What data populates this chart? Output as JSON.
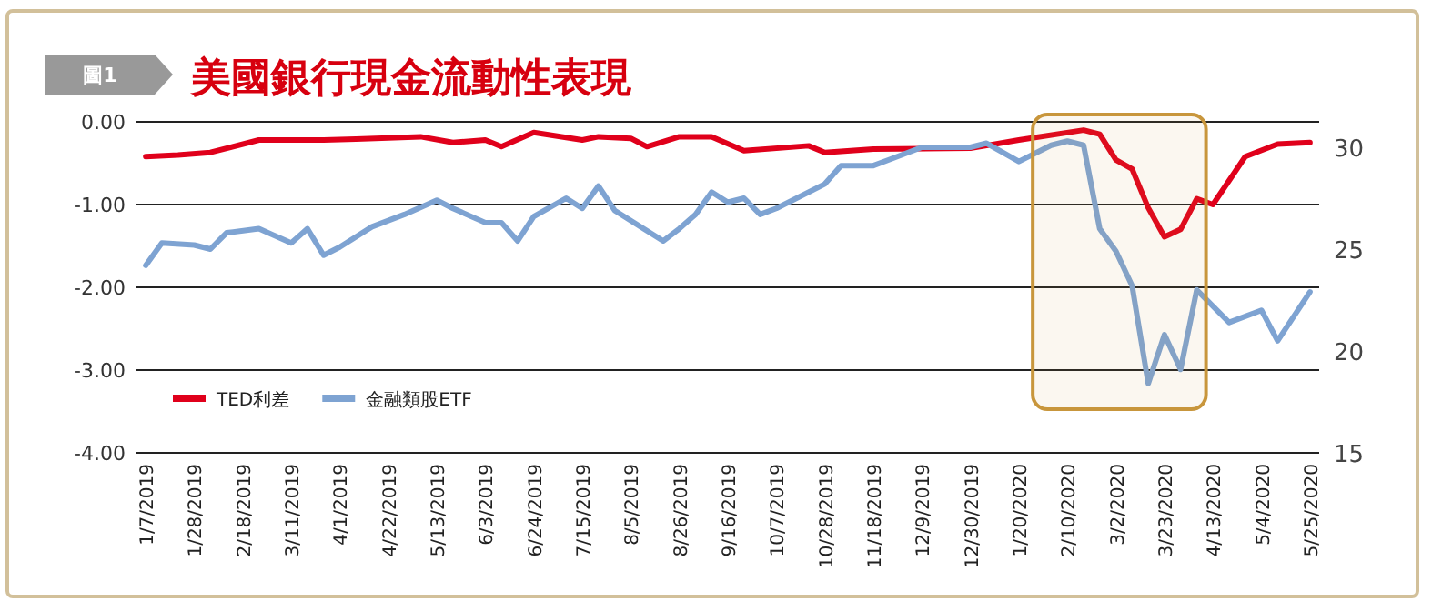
{
  "chart_data": {
    "type": "line",
    "title": "美國銀行現金流動性表現",
    "annotations": [
      "圖1"
    ],
    "xlim": [
      "2019-01-03",
      "2020-05-29"
    ],
    "xticks": [
      {
        "value": "2019-01-07",
        "label": "1/7/2019"
      },
      {
        "value": "2019-01-28",
        "label": "1/28/2019"
      },
      {
        "value": "2019-02-18",
        "label": "2/18/2019"
      },
      {
        "value": "2019-03-11",
        "label": "3/11/2019"
      },
      {
        "value": "2019-04-01",
        "label": "4/1/2019"
      },
      {
        "value": "2019-04-22",
        "label": "4/22/2019"
      },
      {
        "value": "2019-05-13",
        "label": "5/13/2019"
      },
      {
        "value": "2019-06-03",
        "label": "6/3/2019"
      },
      {
        "value": "2019-06-24",
        "label": "6/24/2019"
      },
      {
        "value": "2019-07-15",
        "label": "7/15/2019"
      },
      {
        "value": "2019-08-05",
        "label": "8/5/2019"
      },
      {
        "value": "2019-08-26",
        "label": "8/26/2019"
      },
      {
        "value": "2019-09-16",
        "label": "9/16/2019"
      },
      {
        "value": "2019-10-07",
        "label": "10/7/2019"
      },
      {
        "value": "2019-10-28",
        "label": "10/28/2019"
      },
      {
        "value": "2019-11-18",
        "label": "11/18/2019"
      },
      {
        "value": "2019-12-09",
        "label": "12/9/2019"
      },
      {
        "value": "2019-12-30",
        "label": "12/30/2019"
      },
      {
        "value": "2020-01-20",
        "label": "1/20/2020"
      },
      {
        "value": "2020-02-10",
        "label": "2/10/2020"
      },
      {
        "value": "2020-03-02",
        "label": "3/2/2020"
      },
      {
        "value": "2020-03-23",
        "label": "3/23/2020"
      },
      {
        "value": "2020-04-13",
        "label": "4/13/2020"
      },
      {
        "value": "2020-05-04",
        "label": "5/4/2020"
      },
      {
        "value": "2020-05-25",
        "label": "5/25/2020"
      }
    ],
    "ylim": [
      -4,
      0
    ],
    "yticks": [
      {
        "value": -4,
        "label": "-4.00"
      },
      {
        "value": -3,
        "label": "-3.00"
      },
      {
        "value": -2,
        "label": "-2.00"
      },
      {
        "value": -1,
        "label": "-1.00"
      },
      {
        "value": 0,
        "label": "0.00"
      }
    ],
    "y2lim": [
      15,
      31.25
    ],
    "y2ticks": [
      15,
      20,
      25,
      30
    ],
    "grid": "y",
    "legend": "bottom left",
    "line_style": "solid",
    "bands": [
      {
        "axis": "x",
        "from": "2020-01-26",
        "to": "2020-04-10",
        "color": "#c8963c"
      }
    ],
    "series": [
      {
        "name": "TED利差",
        "color": "#e0001b",
        "x": [
          "2019-01-07",
          "2019-01-21",
          "2019-02-04",
          "2019-02-25",
          "2019-03-25",
          "2019-04-08",
          "2019-05-06",
          "2019-05-20",
          "2019-06-03",
          "2019-06-10",
          "2019-06-24",
          "2019-07-15",
          "2019-07-22",
          "2019-08-05",
          "2019-08-12",
          "2019-08-26",
          "2019-09-09",
          "2019-09-23",
          "2019-10-21",
          "2019-10-28",
          "2019-11-18",
          "2019-12-30",
          "2020-01-20",
          "2020-02-17",
          "2020-02-24",
          "2020-03-02",
          "2020-03-09",
          "2020-03-16",
          "2020-03-23",
          "2020-03-30",
          "2020-04-06",
          "2020-04-13",
          "2020-04-27",
          "2020-05-11",
          "2020-05-25"
        ],
        "values": [
          -0.42,
          -0.4,
          -0.37,
          -0.22,
          -0.22,
          -0.21,
          -0.18,
          -0.25,
          -0.22,
          -0.3,
          -0.13,
          -0.22,
          -0.18,
          -0.2,
          -0.3,
          -0.18,
          -0.18,
          -0.35,
          -0.29,
          -0.37,
          -0.33,
          -0.32,
          -0.22,
          -0.1,
          -0.15,
          -0.46,
          -0.57,
          -1.04,
          -1.39,
          -1.3,
          -0.93,
          -1.0,
          -0.42,
          -0.27,
          -0.25
        ]
      },
      {
        "name": "金融類股ETF",
        "color": "#7ea3d2",
        "axis": "y2",
        "x": [
          "2019-01-07",
          "2019-01-14",
          "2019-01-28",
          "2019-02-04",
          "2019-02-11",
          "2019-02-25",
          "2019-03-11",
          "2019-03-18",
          "2019-03-25",
          "2019-04-01",
          "2019-04-15",
          "2019-04-29",
          "2019-05-13",
          "2019-05-20",
          "2019-06-03",
          "2019-06-10",
          "2019-06-17",
          "2019-06-24",
          "2019-07-08",
          "2019-07-15",
          "2019-07-22",
          "2019-07-29",
          "2019-08-19",
          "2019-08-26",
          "2019-09-02",
          "2019-09-09",
          "2019-09-16",
          "2019-09-23",
          "2019-09-30",
          "2019-10-07",
          "2019-10-28",
          "2019-11-04",
          "2019-11-18",
          "2019-11-25",
          "2019-12-09",
          "2019-12-30",
          "2020-01-06",
          "2020-01-20",
          "2020-02-03",
          "2020-02-10",
          "2020-02-17",
          "2020-02-24",
          "2020-03-02",
          "2020-03-09",
          "2020-03-16",
          "2020-03-23",
          "2020-03-30",
          "2020-04-06",
          "2020-04-20",
          "2020-05-04",
          "2020-05-11",
          "2020-05-25"
        ],
        "values": [
          24.2,
          25.3,
          25.2,
          25.0,
          25.8,
          26.0,
          25.3,
          26.0,
          24.7,
          25.1,
          26.1,
          26.7,
          27.4,
          27.0,
          26.3,
          26.3,
          25.4,
          26.6,
          27.5,
          27.0,
          28.1,
          26.9,
          25.4,
          26.0,
          26.7,
          27.8,
          27.3,
          27.5,
          26.7,
          27.0,
          28.2,
          29.1,
          29.1,
          29.4,
          30.0,
          30.0,
          30.2,
          29.3,
          30.1,
          30.3,
          30.1,
          26.0,
          24.9,
          23.2,
          18.4,
          20.8,
          19.1,
          23.0,
          21.4,
          22.0,
          20.5,
          22.9
        ]
      }
    ]
  }
}
